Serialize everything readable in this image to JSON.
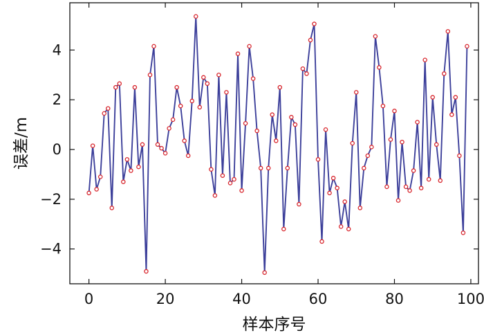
{
  "chart_data": {
    "type": "line",
    "title": "",
    "xlabel": "样本序号",
    "ylabel": "误差/m",
    "xlim": [
      -5,
      102
    ],
    "ylim": [
      -5.4,
      5.9
    ],
    "xticks": [
      0,
      20,
      40,
      60,
      80,
      100
    ],
    "xtick_labels": [
      "0",
      "20",
      "40",
      "60",
      "80",
      "100"
    ],
    "yticks": [
      -4,
      -2,
      0,
      2,
      4
    ],
    "ytick_labels": [
      "−4",
      "−2",
      "0",
      "2",
      "4"
    ],
    "grid": false,
    "legend": "none",
    "line_color": "#3c3f9a",
    "marker_color": "#d8232a",
    "series": [
      {
        "x": [
          0,
          1,
          2,
          3,
          4,
          5,
          6,
          7,
          8,
          9,
          10,
          11,
          12,
          13,
          14,
          15,
          16,
          17,
          18,
          19,
          20,
          21,
          22,
          23,
          24,
          25,
          26,
          27,
          28,
          29,
          30,
          31,
          32,
          33,
          34,
          35,
          36,
          37,
          38,
          39,
          40,
          41,
          42,
          43,
          44,
          45,
          46,
          47,
          48,
          49,
          50,
          51,
          52,
          53,
          54,
          55,
          56,
          57,
          58,
          59,
          60,
          61,
          62,
          63,
          64,
          65,
          66,
          67,
          68,
          69,
          70,
          71,
          72,
          73,
          74,
          75,
          76,
          77,
          78,
          79,
          80,
          81,
          82,
          83,
          84,
          85,
          86,
          87,
          88,
          89,
          90,
          91,
          92,
          93,
          94,
          95,
          96,
          97,
          98,
          99
        ],
        "values": [
          -1.75,
          0.15,
          -1.6,
          -1.1,
          1.45,
          1.65,
          -2.35,
          2.5,
          2.65,
          -1.3,
          -0.4,
          -0.85,
          2.5,
          -0.7,
          0.2,
          -4.9,
          3.0,
          4.15,
          0.2,
          0.05,
          -0.15,
          0.85,
          1.2,
          2.5,
          1.75,
          0.35,
          -0.25,
          1.95,
          5.35,
          1.7,
          2.9,
          2.65,
          -0.8,
          -1.85,
          3.0,
          -1.05,
          2.3,
          -1.35,
          -1.2,
          3.85,
          -1.65,
          1.05,
          4.15,
          2.85,
          0.75,
          -0.75,
          -4.95,
          -0.75,
          1.4,
          0.35,
          2.5,
          -3.2,
          -0.75,
          1.3,
          1.0,
          -2.2,
          3.25,
          3.05,
          4.4,
          5.05,
          -0.4,
          -3.7,
          0.8,
          -1.75,
          -1.15,
          -1.55,
          -3.1,
          -2.1,
          -3.2,
          0.25,
          2.3,
          -2.35,
          -0.75,
          -0.25,
          0.1,
          4.55,
          3.3,
          1.75,
          -1.5,
          0.4,
          1.55,
          -2.05,
          0.3,
          -1.5,
          -1.65,
          -0.85,
          1.1,
          -1.55,
          3.6,
          -1.2,
          2.1,
          0.2,
          -1.25,
          3.05,
          4.75,
          1.4,
          2.1,
          -0.25,
          -3.35,
          4.15
        ]
      }
    ]
  }
}
